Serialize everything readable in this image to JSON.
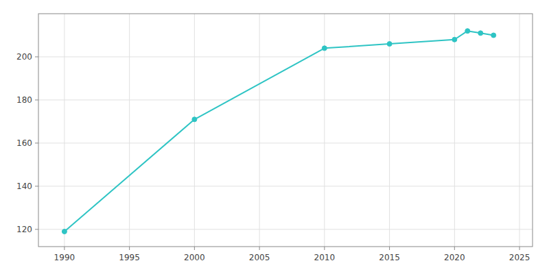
{
  "chart_data": {
    "type": "line",
    "x": [
      1990,
      2000,
      2010,
      2015,
      2020,
      2021,
      2022,
      2023
    ],
    "values": [
      119,
      171,
      204,
      206,
      208,
      212,
      211,
      210
    ],
    "color": "#2EC4C4",
    "marker": "circle",
    "xlim": [
      1988,
      2026
    ],
    "ylim": [
      112,
      220
    ],
    "xticks": [
      1990,
      1995,
      2000,
      2005,
      2010,
      2015,
      2020,
      2025
    ],
    "yticks": [
      120,
      140,
      160,
      180,
      200
    ],
    "grid": true
  }
}
